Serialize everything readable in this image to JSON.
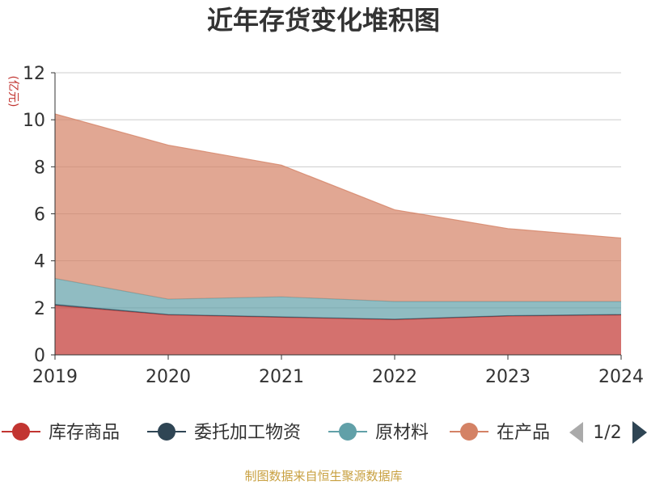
{
  "chart_data": {
    "type": "area",
    "stacked": true,
    "title": "近年存货变化堆积图",
    "ylabel": "(亿元)",
    "xlabel": "",
    "x": [
      "2019",
      "2020",
      "2021",
      "2022",
      "2023",
      "2024"
    ],
    "ylim": [
      0,
      12
    ],
    "yticks": [
      0,
      2,
      4,
      6,
      8,
      10,
      12
    ],
    "series": [
      {
        "name": "库存商品",
        "color": "#c23531",
        "values": [
          2.1,
          1.7,
          1.6,
          1.5,
          1.65,
          1.7
        ]
      },
      {
        "name": "委托加工物资",
        "color": "#2f4554",
        "values": [
          0.05,
          0.02,
          0.02,
          0.02,
          0.02,
          0.02
        ]
      },
      {
        "name": "原材料",
        "color": "#61a0a8",
        "values": [
          1.1,
          0.65,
          0.85,
          0.75,
          0.6,
          0.55
        ]
      },
      {
        "name": "在产品",
        "color": "#d48265",
        "values": [
          7.0,
          6.55,
          5.6,
          3.9,
          3.1,
          2.7
        ]
      }
    ],
    "legend": {
      "items": [
        "库存商品",
        "委托加工物资",
        "原材料",
        "在产品"
      ],
      "position": "bottom",
      "page": "1/2"
    }
  },
  "footer": "制图数据来自恒生聚源数据库",
  "colors": {
    "axis": "#333333",
    "grid": "#cccccc",
    "unit": "#c23531",
    "footer": "#c8a040",
    "pager_active": "#2f4554",
    "pager_inactive": "#aaaaaa"
  }
}
